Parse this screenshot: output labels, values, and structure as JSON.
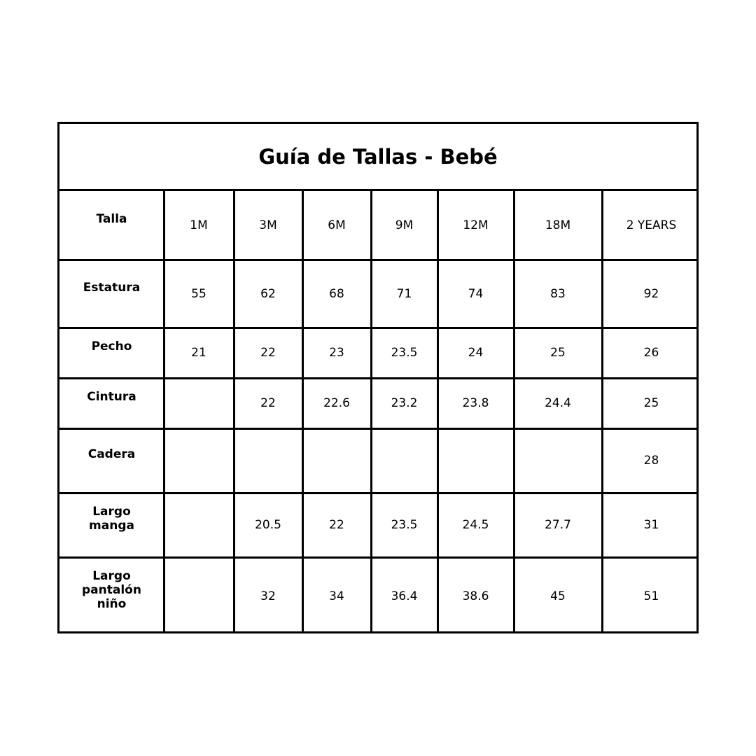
{
  "title": "Guía de Tallas - Bebé",
  "columns": [
    "1M",
    "3M",
    "6M",
    "9M",
    "12M",
    "18M",
    "2 YEARS"
  ],
  "header_label": "Talla",
  "rows": [
    {
      "label": "Estatura",
      "values": [
        "55",
        "62",
        "68",
        "71",
        "74",
        "83",
        "92"
      ]
    },
    {
      "label": "Pecho",
      "values": [
        "21",
        "22",
        "23",
        "23.5",
        "24",
        "25",
        "26"
      ]
    },
    {
      "label": "Cintura",
      "values": [
        "",
        "22",
        "22.6",
        "23.2",
        "23.8",
        "24.4",
        "25"
      ]
    },
    {
      "label": "Cadera",
      "values": [
        "",
        "",
        "",
        "",
        "",
        "",
        "28"
      ]
    },
    {
      "label": "Largo\nmanga",
      "values": [
        "",
        "20.5",
        "22",
        "23.5",
        "24.5",
        "27.7",
        "31"
      ]
    },
    {
      "label": "Largo\npantalón\nniño",
      "values": [
        "",
        "32",
        "34",
        "36.4",
        "38.6",
        "45",
        "51"
      ]
    }
  ]
}
